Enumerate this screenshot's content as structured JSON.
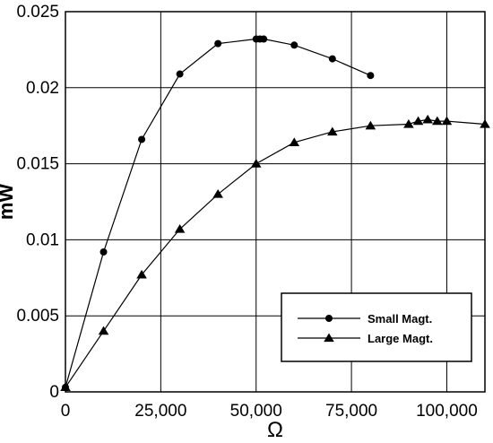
{
  "chart_data": {
    "type": "line",
    "xlabel": "Ω",
    "ylabel": "mW",
    "xlim": [
      0,
      110000
    ],
    "ylim": [
      0,
      0.025
    ],
    "x_ticks": [
      0,
      25000,
      50000,
      75000,
      100000
    ],
    "x_tick_labels": [
      "0",
      "25,000",
      "50,000",
      "75,000",
      "100,000"
    ],
    "y_ticks": [
      0,
      0.005,
      0.01,
      0.015,
      0.02,
      0.025
    ],
    "y_tick_labels": [
      "0",
      "0.005",
      "0.01",
      "0.015",
      "0.02",
      "0.025"
    ],
    "grid": true,
    "legend_position": "bottom-right",
    "series": [
      {
        "name": "Small Magt.",
        "marker": "circle",
        "x": [
          0,
          10000,
          20000,
          30000,
          40000,
          50000,
          51000,
          52000,
          60000,
          70000,
          80000
        ],
        "y": [
          0.0003,
          0.0092,
          0.0166,
          0.0209,
          0.0229,
          0.0232,
          0.0232,
          0.0232,
          0.0228,
          0.0219,
          0.0208
        ]
      },
      {
        "name": "Large Magt.",
        "marker": "triangle",
        "x": [
          0,
          10000,
          20000,
          30000,
          40000,
          50000,
          60000,
          70000,
          80000,
          90000,
          92500,
          95000,
          97500,
          100000,
          110000
        ],
        "y": [
          0.0003,
          0.004,
          0.0077,
          0.0107,
          0.013,
          0.015,
          0.0164,
          0.0171,
          0.0175,
          0.0176,
          0.0178,
          0.0179,
          0.0178,
          0.0178,
          0.0176
        ]
      }
    ]
  }
}
